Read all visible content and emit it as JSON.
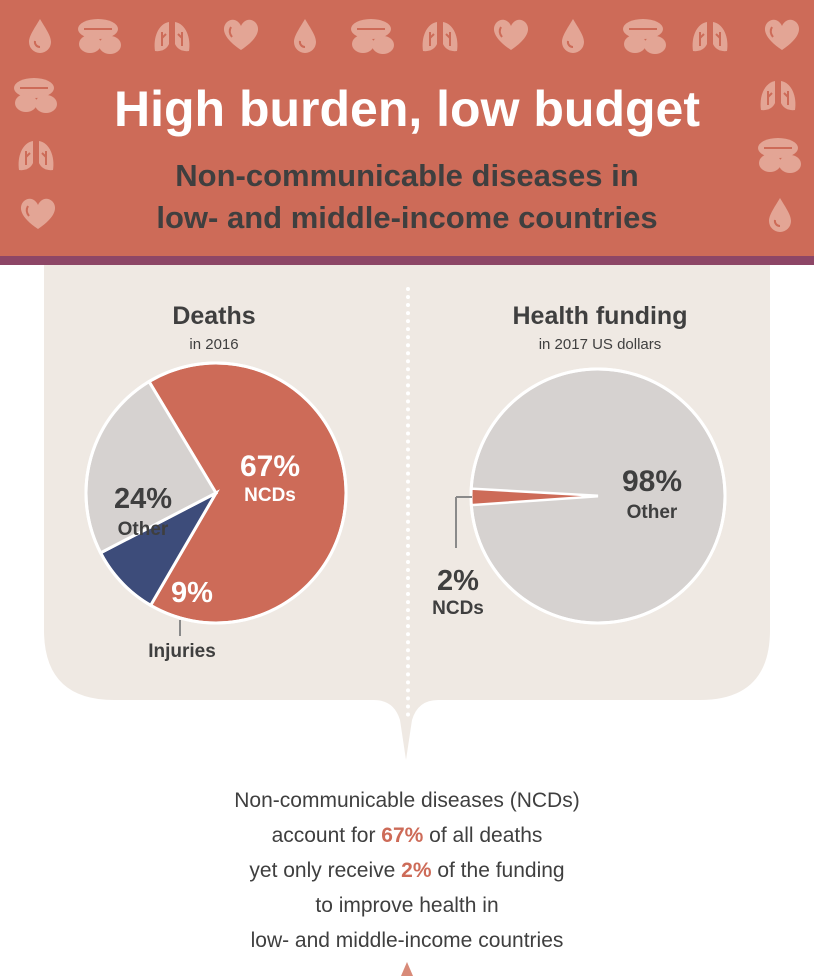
{
  "header": {
    "title": "High burden, low budget",
    "subtitle_line1": "Non-communicable diseases in",
    "subtitle_line2": "low- and middle-income countries"
  },
  "colors": {
    "banner": "#cd6b58",
    "stripe": "#8d4666",
    "panel": "#efe9e3",
    "ncd": "#cd6b58",
    "other": "#d6d2d0",
    "injuries": "#3d4c7a",
    "text": "#3f3f3f"
  },
  "chart_data": [
    {
      "type": "pie",
      "title": "Deaths",
      "subtitle": "in 2016",
      "slices": [
        {
          "label": "NCDs",
          "value": 67,
          "display": "67%"
        },
        {
          "label": "Injuries",
          "value": 9,
          "display": "9%"
        },
        {
          "label": "Other",
          "value": 24,
          "display": "24%"
        }
      ]
    },
    {
      "type": "pie",
      "title": "Health funding",
      "subtitle": "in 2017 US dollars",
      "slices": [
        {
          "label": "Other",
          "value": 98,
          "display": "98%"
        },
        {
          "label": "NCDs",
          "value": 2,
          "display": "2%"
        }
      ]
    }
  ],
  "summary": {
    "line1": "Non-communicable diseases (NCDs)",
    "line2_pre": "account for ",
    "line2_hl": "67%",
    "line2_post": " of all deaths",
    "line3_pre": "yet only receive ",
    "line3_hl": "2%",
    "line3_post": " of the funding",
    "line4": "to improve health in",
    "line5": "low- and middle-income countries"
  },
  "icons": [
    "blood-drop-icon",
    "pills-icon",
    "lungs-icon",
    "heart-icon"
  ]
}
